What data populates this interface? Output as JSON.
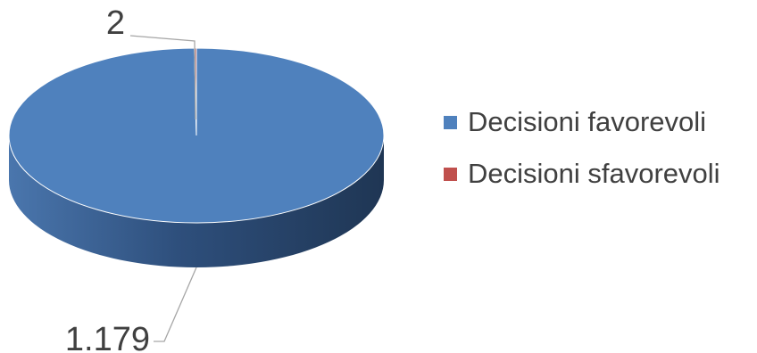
{
  "chart_data": {
    "type": "pie",
    "style": "3d",
    "categories": [
      "Decisioni favorevoli",
      "Decisioni sfavorevoli"
    ],
    "values": [
      1179,
      2
    ],
    "value_labels": [
      "1.179",
      "2"
    ],
    "colors": [
      "#4F81BD",
      "#C0504D"
    ],
    "legend_position": "right"
  }
}
